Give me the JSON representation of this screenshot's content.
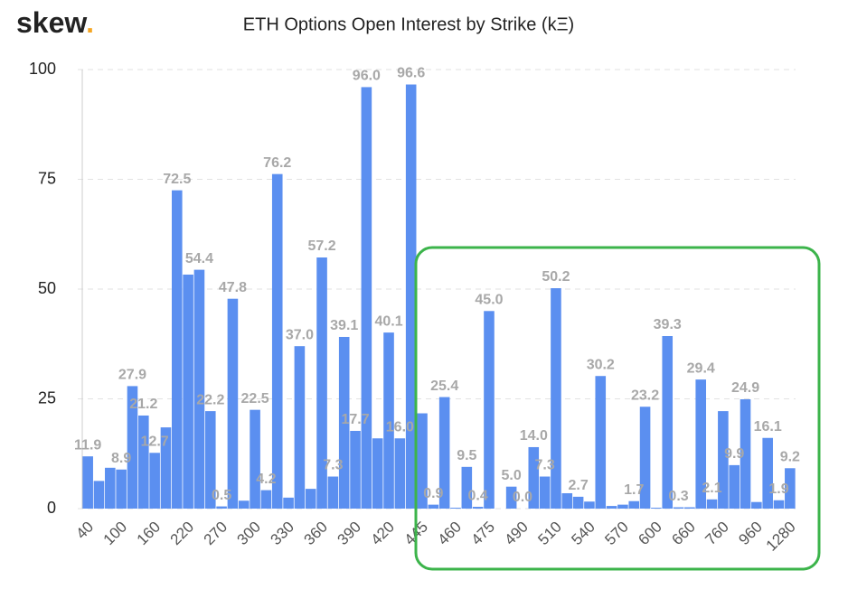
{
  "logo": {
    "word": "skew",
    "dot": "."
  },
  "chart_data": {
    "type": "bar",
    "title": "ETH Options Open Interest by Strike (kΞ)",
    "categories": [
      "40",
      null,
      null,
      "100",
      null,
      null,
      "160",
      null,
      null,
      "220",
      null,
      null,
      "270",
      null,
      null,
      "300",
      null,
      null,
      "330",
      null,
      null,
      "360",
      null,
      null,
      "390",
      null,
      null,
      "420",
      null,
      null,
      "445",
      null,
      null,
      "460",
      null,
      null,
      "475",
      null,
      null,
      "490",
      null,
      null,
      "510",
      null,
      null,
      "540",
      null,
      null,
      "570",
      null,
      null,
      "600",
      null,
      null,
      "660",
      null,
      null,
      "760",
      null,
      null,
      "960",
      null,
      null,
      "1280"
    ],
    "values": [
      11.9,
      6.3,
      9.3,
      8.9,
      27.9,
      21.2,
      12.7,
      18.5,
      72.5,
      53.3,
      54.4,
      22.2,
      0.5,
      47.8,
      1.8,
      22.5,
      4.2,
      76.2,
      2.5,
      37.0,
      4.5,
      57.2,
      7.3,
      39.1,
      17.7,
      96.0,
      16.0,
      40.1,
      16.0,
      96.6,
      21.7,
      0.9,
      25.4,
      0.2,
      9.5,
      0.4,
      45.0,
      0.0,
      5.0,
      0.0,
      14.0,
      7.3,
      50.2,
      3.5,
      2.7,
      1.6,
      30.2,
      0.6,
      0.9,
      1.7,
      23.2,
      0.2,
      39.3,
      0.3,
      0.3,
      29.4,
      2.1,
      22.2,
      9.9,
      24.9,
      1.5,
      16.1,
      1.9,
      9.2
    ],
    "value_labels": [
      "11.9",
      null,
      null,
      "8.9",
      "27.9",
      "21.2",
      "12.7",
      null,
      "72.5",
      null,
      "54.4",
      "22.2",
      "0.5",
      "47.8",
      null,
      "22.5",
      "4.2",
      "76.2",
      null,
      "37.0",
      null,
      "57.2",
      "7.3",
      "39.1",
      "17.7",
      "96.0",
      null,
      "40.1",
      "16.0",
      "96.6",
      null,
      "0.9",
      "25.4",
      null,
      "9.5",
      "0.4",
      "45.0",
      null,
      "5.0",
      "0.0",
      "14.0",
      "7.3",
      "50.2",
      null,
      "2.7",
      null,
      "30.2",
      null,
      null,
      "1.7",
      "23.2",
      null,
      "39.3",
      "0.3",
      null,
      "29.4",
      "2.1",
      null,
      "9.9",
      "24.9",
      null,
      "16.1",
      "1.9",
      "9.2"
    ],
    "color": "#5b8ff0",
    "ylim": [
      0,
      100
    ],
    "yticks": [
      0,
      25,
      50,
      75,
      100
    ],
    "grid": true
  }
}
